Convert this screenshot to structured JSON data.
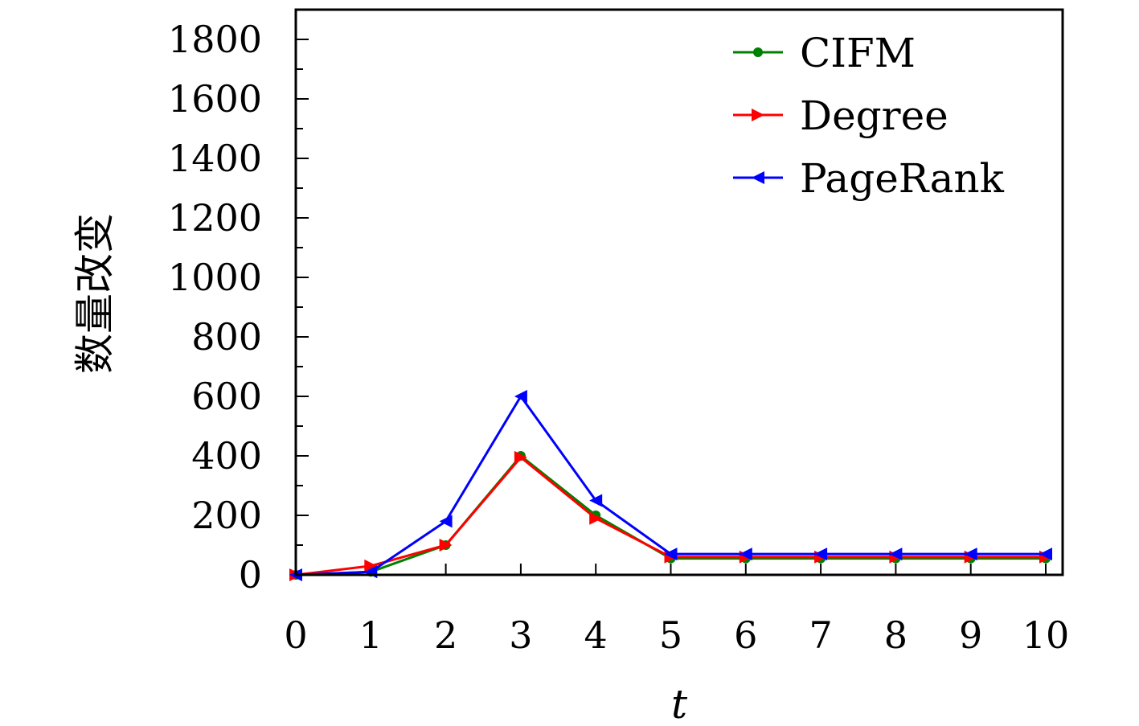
{
  "chart_data": {
    "type": "line",
    "xlabel": "t",
    "ylabel": "数量改变",
    "x": [
      0,
      1,
      2,
      3,
      4,
      5,
      6,
      7,
      8,
      9,
      10
    ],
    "xlim": [
      0,
      10
    ],
    "ylim": [
      0,
      1900
    ],
    "x_ticks": [
      "0",
      "1",
      "2",
      "3",
      "4",
      "5",
      "6",
      "7",
      "8",
      "9",
      "10"
    ],
    "y_ticks": [
      "0",
      "200",
      "400",
      "600",
      "800",
      "1000",
      "1200",
      "1400",
      "1600",
      "1800"
    ],
    "y_tick_values": [
      0,
      200,
      400,
      600,
      800,
      1000,
      1200,
      1400,
      1600,
      1800
    ],
    "grid": false,
    "legend_position": "top-right",
    "series": [
      {
        "name": "CIFM",
        "color": "#008000",
        "marker": "circle",
        "values": [
          0,
          10,
          100,
          400,
          200,
          55,
          55,
          55,
          55,
          55,
          55
        ]
      },
      {
        "name": "Degree",
        "color": "#ff0000",
        "marker": "triangle-right",
        "values": [
          0,
          30,
          100,
          395,
          190,
          60,
          60,
          60,
          60,
          60,
          60
        ]
      },
      {
        "name": "PageRank",
        "color": "#0000ff",
        "marker": "triangle-left",
        "values": [
          0,
          10,
          180,
          600,
          250,
          70,
          70,
          70,
          70,
          70,
          70
        ]
      }
    ]
  }
}
